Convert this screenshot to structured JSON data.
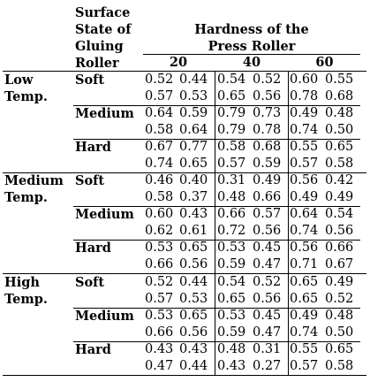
{
  "header": {
    "surface_lines": [
      "Surface",
      "State of",
      "Gluing",
      "Roller"
    ],
    "hardness_lines": [
      "Hardness of the",
      "Press Roller"
    ],
    "hardness_levels": [
      "20",
      "40",
      "60"
    ]
  },
  "groups": [
    {
      "temp_lines": [
        "Low",
        "Temp."
      ],
      "states": [
        {
          "label": "Soft",
          "rows": [
            [
              "0.52",
              "0.44",
              "0.54",
              "0.52",
              "0.60",
              "0.55"
            ],
            [
              "0.57",
              "0.53",
              "0.65",
              "0.56",
              "0.78",
              "0.68"
            ]
          ]
        },
        {
          "label": "Medium",
          "rows": [
            [
              "0.64",
              "0.59",
              "0.79",
              "0.73",
              "0.49",
              "0.48"
            ],
            [
              "0.58",
              "0.64",
              "0.79",
              "0.78",
              "0.74",
              "0.50"
            ]
          ]
        },
        {
          "label": "Hard",
          "rows": [
            [
              "0.67",
              "0.77",
              "0.58",
              "0.68",
              "0.55",
              "0.65"
            ],
            [
              "0.74",
              "0.65",
              "0.57",
              "0.59",
              "0.57",
              "0.58"
            ]
          ]
        }
      ]
    },
    {
      "temp_lines": [
        "Medium",
        "Temp."
      ],
      "states": [
        {
          "label": "Soft",
          "rows": [
            [
              "0.46",
              "0.40",
              "0.31",
              "0.49",
              "0.56",
              "0.42"
            ],
            [
              "0.58",
              "0.37",
              "0.48",
              "0.66",
              "0.49",
              "0.49"
            ]
          ]
        },
        {
          "label": "Medium",
          "rows": [
            [
              "0.60",
              "0.43",
              "0.66",
              "0.57",
              "0.64",
              "0.54"
            ],
            [
              "0.62",
              "0.61",
              "0.72",
              "0.56",
              "0.74",
              "0.56"
            ]
          ]
        },
        {
          "label": "Hard",
          "rows": [
            [
              "0.53",
              "0.65",
              "0.53",
              "0.45",
              "0.56",
              "0.66"
            ],
            [
              "0.66",
              "0.56",
              "0.59",
              "0.47",
              "0.71",
              "0.67"
            ]
          ]
        }
      ]
    },
    {
      "temp_lines": [
        "High",
        "Temp."
      ],
      "states": [
        {
          "label": "Soft",
          "rows": [
            [
              "0.52",
              "0.44",
              "0.54",
              "0.52",
              "0.65",
              "0.49"
            ],
            [
              "0.57",
              "0.53",
              "0.65",
              "0.56",
              "0.65",
              "0.52"
            ]
          ]
        },
        {
          "label": "Medium",
          "rows": [
            [
              "0.53",
              "0.65",
              "0.53",
              "0.45",
              "0.49",
              "0.48"
            ],
            [
              "0.66",
              "0.56",
              "0.59",
              "0.47",
              "0.74",
              "0.50"
            ]
          ]
        },
        {
          "label": "Hard",
          "rows": [
            [
              "0.43",
              "0.43",
              "0.48",
              "0.31",
              "0.55",
              "0.65"
            ],
            [
              "0.47",
              "0.44",
              "0.43",
              "0.27",
              "0.57",
              "0.58"
            ]
          ]
        }
      ]
    }
  ]
}
